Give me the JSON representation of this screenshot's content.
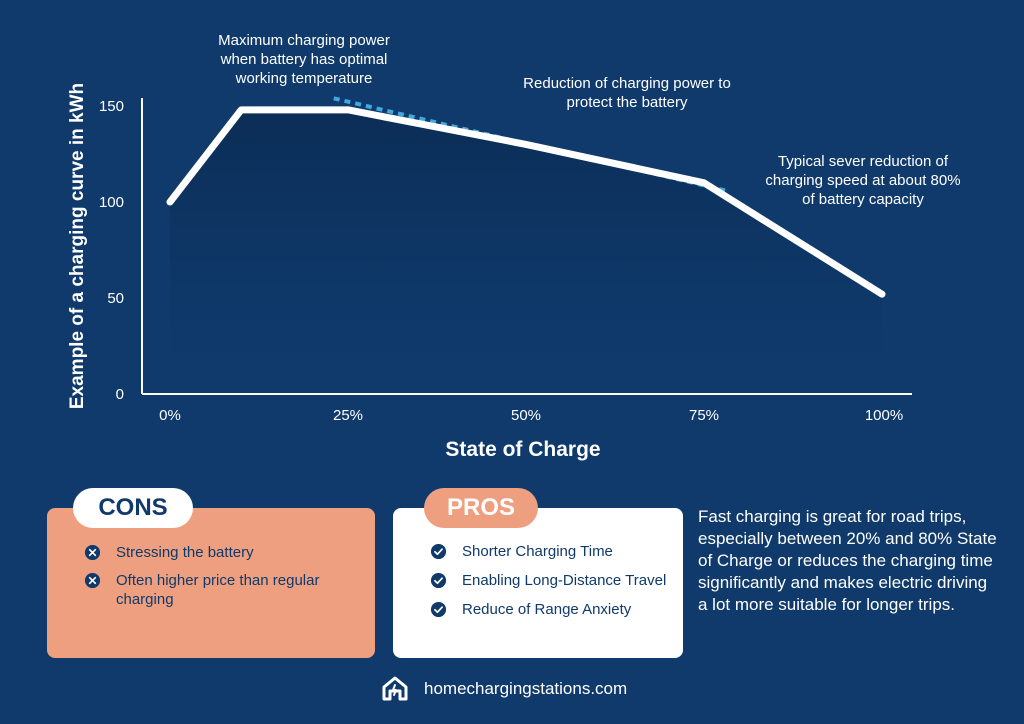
{
  "chart_data": {
    "type": "line",
    "title": "",
    "xlabel": "State of Charge",
    "ylabel": "Example of a charging curve in kWh",
    "x_ticks": [
      "0%",
      "25%",
      "50%",
      "75%",
      "100%"
    ],
    "y_ticks": [
      "0",
      "50",
      "100",
      "150"
    ],
    "xlim": [
      0,
      100
    ],
    "ylim": [
      0,
      160
    ],
    "grid": false,
    "series": [
      {
        "x": [
          0,
          10,
          25,
          50,
          75,
          100
        ],
        "y": [
          100,
          148,
          148,
          130,
          110,
          52
        ]
      }
    ],
    "reduction_line": {
      "x": [
        23,
        78
      ],
      "y": [
        154,
        106
      ]
    },
    "annotations": [
      "Maximum charging power when battery has optimal working temperature",
      "Reduction of charging power to protect the battery",
      "Typical sever reduction of charging speed at about 80% of battery capacity"
    ]
  },
  "annotations": {
    "max_power": "Maximum charging power when battery has optimal working temperature",
    "reduction": "Reduction of charging power to protect the battery",
    "severe": "Typical sever reduction of charging speed at about 80% of battery capacity"
  },
  "cons": {
    "title": "CONS",
    "items": [
      "Stressing the battery",
      "Often higher price than regular charging"
    ]
  },
  "pros": {
    "title": "PROS",
    "items": [
      "Shorter Charging Time",
      "Enabling Long-Distance Travel",
      "Reduce of Range Anxiety"
    ]
  },
  "summary": "Fast charging is great for road trips, especially between 20% and 80% State of Charge or reduces the charging time significantly and makes electric driving a lot more suitable for longer trips.",
  "brand": {
    "name": "homechargingstations.com",
    "icon": "house-logo-icon"
  },
  "colors": {
    "background": "#0f3a6b",
    "area_fill": "#0b2c55",
    "curve": "#ffffff",
    "reduction_dash": "#3fa9e0",
    "cons_card": "#ee9f7f",
    "pros_card": "#ffffff",
    "text_dark": "#0f3a6b"
  }
}
